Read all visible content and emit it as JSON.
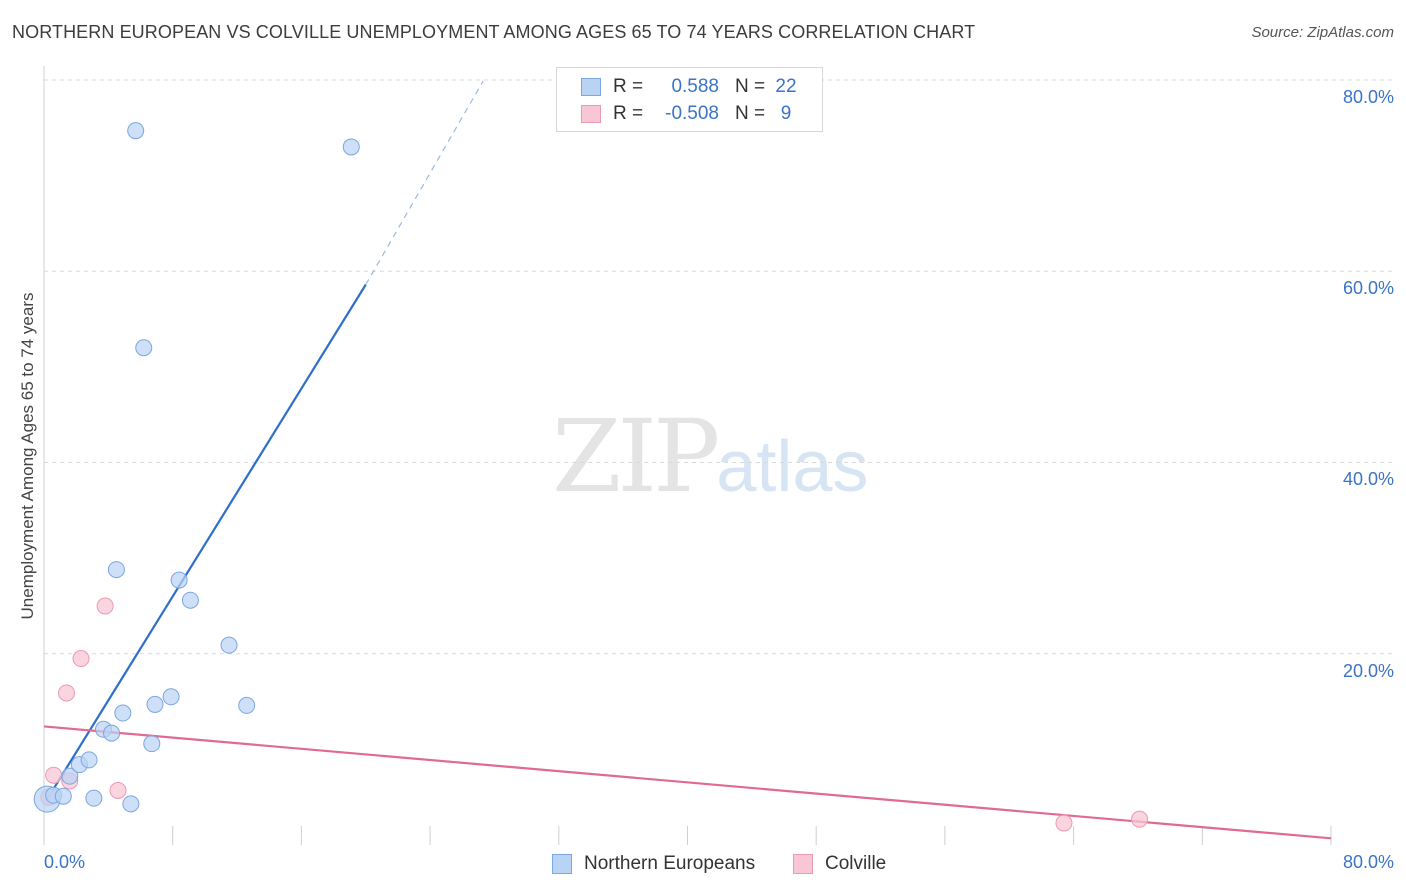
{
  "header": {
    "title": "NORTHERN EUROPEAN VS COLVILLE UNEMPLOYMENT AMONG AGES 65 TO 74 YEARS CORRELATION CHART",
    "source": "Source: ZipAtlas.com"
  },
  "watermark": {
    "zip": "ZIP",
    "atlas": "atlas"
  },
  "legend": {
    "rows": [
      {
        "r_label": "R =",
        "r_value": "0.588",
        "n_label": "N =",
        "n_value": "22"
      },
      {
        "r_label": "R =",
        "r_value": "-0.508",
        "n_label": "N =",
        "n_value": "9"
      }
    ]
  },
  "bottom_legend": {
    "series1": "Northern Europeans",
    "series2": "Colville"
  },
  "colors": {
    "blue_fill": "#b9d3f4",
    "blue_stroke": "#7ba6de",
    "blue_line": "#2e6fc9",
    "pink_fill": "#f8c6d4",
    "pink_stroke": "#ec9ab2",
    "pink_line": "#e06a95",
    "grid": "#d9d9d9",
    "tick_text": "#3a73c8"
  },
  "chart_data": {
    "type": "scatter",
    "title": "NORTHERN EUROPEAN VS COLVILLE UNEMPLOYMENT AMONG AGES 65 TO 74 YEARS CORRELATION CHART",
    "xlabel": "",
    "ylabel": "Unemployment Among Ages 65 to 74 years",
    "xlim": [
      0,
      80
    ],
    "ylim": [
      0,
      80
    ],
    "x_tick_labels": [
      "0.0%",
      "80.0%"
    ],
    "y_ticks": [
      20,
      40,
      60,
      80
    ],
    "y_tick_labels": [
      "20.0%",
      "40.0%",
      "60.0%",
      "80.0%"
    ],
    "grid": true,
    "series": [
      {
        "name": "Northern Europeans",
        "R": 0.588,
        "N": 22,
        "points": [
          [
            0.2,
            4.8
          ],
          [
            0.6,
            5.2
          ],
          [
            1.2,
            5.1
          ],
          [
            1.6,
            7.2
          ],
          [
            2.2,
            8.4
          ],
          [
            2.8,
            8.9
          ],
          [
            3.1,
            4.9
          ],
          [
            3.7,
            12.1
          ],
          [
            4.2,
            11.7
          ],
          [
            4.5,
            28.8
          ],
          [
            4.9,
            13.8
          ],
          [
            5.4,
            4.3
          ],
          [
            5.7,
            74.7
          ],
          [
            6.2,
            52.0
          ],
          [
            6.7,
            10.6
          ],
          [
            6.9,
            14.7
          ],
          [
            7.9,
            15.5
          ],
          [
            8.4,
            27.7
          ],
          [
            9.1,
            25.6
          ],
          [
            11.5,
            20.9
          ],
          [
            12.6,
            14.6
          ],
          [
            19.1,
            73.0
          ]
        ],
        "trend": {
          "x": [
            0.2,
            20.0
          ],
          "y": [
            4.8,
            58.6
          ],
          "dash_to": [
            27.3,
            79.9
          ]
        }
      },
      {
        "name": "Colville",
        "R": -0.508,
        "N": 9,
        "points": [
          [
            0.3,
            5.0
          ],
          [
            0.6,
            7.3
          ],
          [
            1.4,
            15.9
          ],
          [
            1.6,
            6.7
          ],
          [
            2.3,
            19.5
          ],
          [
            3.8,
            25.0
          ],
          [
            4.6,
            5.7
          ],
          [
            63.4,
            2.3
          ],
          [
            68.1,
            2.7
          ]
        ],
        "trend": {
          "x": [
            0.0,
            80.0
          ],
          "y": [
            12.4,
            0.7
          ]
        }
      }
    ]
  }
}
